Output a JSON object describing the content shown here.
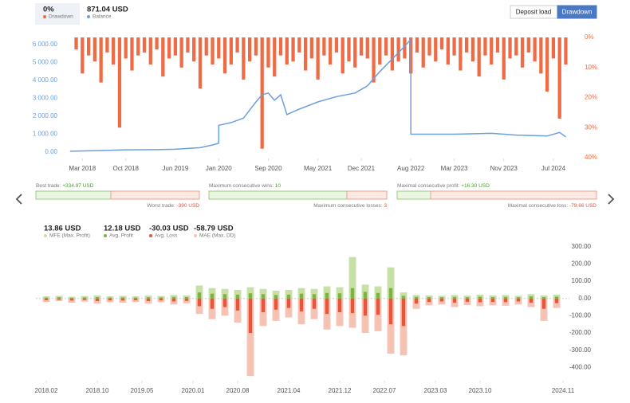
{
  "header": {
    "drawdown_value": "0%",
    "balance_value": "871.04 USD",
    "buttons": [
      "Deposit load",
      "Drawdown"
    ]
  },
  "stats": [
    {
      "top_label": "Best trade:",
      "top_value": "+334.97 USD",
      "bottom_label": "Worst trade:",
      "bottom_value": "-390 USD"
    },
    {
      "top_label": "Maximum consecutive wins:",
      "top_value": "10",
      "bottom_label": "Maximum consecutive losses:",
      "bottom_value": "3"
    },
    {
      "top_label": "Maximal consecutive profit:",
      "top_value": "+16.30 USD",
      "bottom_label": "Maximal consecutive loss:",
      "bottom_value": "-79.66 USD"
    }
  ],
  "chart_data": [
    {
      "type": "combo",
      "xlim": [
        "2017-12",
        "2024-11"
      ],
      "xticks": [
        {
          "value": "2018-03",
          "label": "Mar 2018"
        },
        {
          "value": "2018-10",
          "label": "Oct 2018"
        },
        {
          "value": "2019-06",
          "label": "Jun 2019"
        },
        {
          "value": "2020-01",
          "label": "Jan 2020"
        },
        {
          "value": "2020-09",
          "label": "Sep 2020"
        },
        {
          "value": "2021-05",
          "label": "May 2021"
        },
        {
          "value": "2021-12",
          "label": "Dec 2021"
        },
        {
          "value": "2022-08",
          "label": "Aug 2022"
        },
        {
          "value": "2023-03",
          "label": "Mar 2023"
        },
        {
          "value": "2023-11",
          "label": "Nov 2023"
        },
        {
          "value": "2024-07",
          "label": "Jul 2024"
        }
      ],
      "ylim": [
        -310,
        6400
      ],
      "yticks": [
        {
          "value": 0,
          "label": "0.00"
        },
        {
          "value": 1000,
          "label": "1 000.00"
        },
        {
          "value": 2000,
          "label": "2 000.00"
        },
        {
          "value": 3000,
          "label": "3 000.00"
        },
        {
          "value": 4000,
          "label": "4 000.00"
        },
        {
          "value": 5000,
          "label": "5 000.00"
        },
        {
          "value": 6000,
          "label": "6 000.00"
        }
      ],
      "y2lim": [
        0,
        40
      ],
      "y2_reversed": true,
      "y2ticks": [
        {
          "value": 0,
          "label": "0%"
        },
        {
          "value": 10,
          "label": "10%"
        },
        {
          "value": 20,
          "label": "20%"
        },
        {
          "value": 30,
          "label": "30%"
        },
        {
          "value": 40,
          "label": "40%"
        }
      ],
      "series": [
        {
          "name": "Drawdown",
          "color": "#ef6b45",
          "axis": "y2",
          "kind": "bar",
          "x": [
            "2018-02",
            "2018-03",
            "2018-04",
            "2018-05",
            "2018-06",
            "2018-07",
            "2018-08",
            "2018-09",
            "2018-10",
            "2018-11",
            "2018-12",
            "2019-01",
            "2019-02",
            "2019-03",
            "2019-04",
            "2019-05",
            "2019-06",
            "2019-07",
            "2019-08",
            "2019-09",
            "2019-10",
            "2019-11",
            "2019-12",
            "2020-01",
            "2020-02",
            "2020-03",
            "2020-04",
            "2020-05",
            "2020-06",
            "2020-07",
            "2020-08",
            "2020-09",
            "2020-10",
            "2020-11",
            "2020-12",
            "2021-01",
            "2021-02",
            "2021-03",
            "2021-04",
            "2021-05",
            "2021-06",
            "2021-07",
            "2021-08",
            "2021-09",
            "2021-10",
            "2021-11",
            "2021-12",
            "2022-01",
            "2022-02",
            "2022-03",
            "2022-04",
            "2022-05",
            "2022-06",
            "2022-07",
            "2022-08",
            "2022-09",
            "2022-10",
            "2022-11",
            "2022-12",
            "2023-01",
            "2023-02",
            "2023-03",
            "2023-04",
            "2023-05",
            "2023-06",
            "2023-07",
            "2023-08",
            "2023-09",
            "2023-10",
            "2023-11",
            "2023-12",
            "2024-01",
            "2024-02",
            "2024-03",
            "2024-04",
            "2024-05",
            "2024-06",
            "2024-07",
            "2024-08",
            "2024-09"
          ],
          "values": [
            4,
            12,
            6,
            8,
            15,
            5,
            9,
            30,
            7,
            11,
            6,
            5,
            9,
            4,
            13,
            7,
            6,
            10,
            5,
            8,
            17,
            6,
            9,
            7,
            12,
            9,
            5,
            14,
            8,
            6,
            37,
            10,
            13,
            6,
            9,
            8,
            5,
            11,
            7,
            14,
            6,
            9,
            5,
            12,
            8,
            10,
            6,
            7,
            15,
            9,
            6,
            11,
            8,
            7,
            12,
            5,
            10,
            6,
            8,
            4,
            9,
            6,
            11,
            5,
            8,
            13,
            6,
            9,
            5,
            14,
            7,
            6,
            10,
            5,
            8,
            12,
            18,
            7,
            27,
            9
          ]
        },
        {
          "name": "Balance",
          "color": "#6a9fe0",
          "axis": "y",
          "kind": "line",
          "x": [
            "2018-01",
            "2018-06",
            "2018-10",
            "2019-03",
            "2019-06",
            "2019-10",
            "2019-12",
            "2020-01",
            "2020-01",
            "2020-03",
            "2020-05",
            "2020-07",
            "2020-08",
            "2020-09",
            "2020-10",
            "2020-11",
            "2020-12",
            "2021-02",
            "2021-05",
            "2021-08",
            "2021-11",
            "2022-01",
            "2022-03",
            "2022-05",
            "2022-07",
            "2022-08",
            "2022-08",
            "2022-09",
            "2023-03",
            "2023-09",
            "2024-01",
            "2024-06",
            "2024-08",
            "2024-09"
          ],
          "values": [
            50,
            90,
            130,
            140,
            160,
            250,
            400,
            500,
            1500,
            1650,
            1900,
            2800,
            3200,
            3300,
            2900,
            3200,
            2100,
            2400,
            2800,
            3100,
            3300,
            3700,
            4500,
            5200,
            5900,
            6300,
            1000,
            1000,
            1000,
            1050,
            950,
            900,
            1100,
            850
          ]
        }
      ]
    },
    {
      "type": "bar",
      "xlim": [
        "2018-01",
        "2024-12"
      ],
      "xticks": [
        {
          "value": "2018-02",
          "label": "2018.02"
        },
        {
          "value": "2018-10",
          "label": "2018.10"
        },
        {
          "value": "2019-05",
          "label": "2019.05"
        },
        {
          "value": "2020-01",
          "label": "2020.01"
        },
        {
          "value": "2020-08",
          "label": "2020.08"
        },
        {
          "value": "2021-04",
          "label": "2021.04"
        },
        {
          "value": "2021-12",
          "label": "2021.12"
        },
        {
          "value": "2022-07",
          "label": "2022.07"
        },
        {
          "value": "2023-03",
          "label": "2023.03"
        },
        {
          "value": "2023-10",
          "label": "2023.10"
        },
        {
          "value": "2024-11",
          "label": "2024.11"
        }
      ],
      "ylim": [
        -440,
        345
      ],
      "yticks": [
        {
          "value": 300,
          "label": "300.00"
        },
        {
          "value": 200,
          "label": "200.00"
        },
        {
          "value": 100,
          "label": "100.00"
        },
        {
          "value": 0,
          "label": "0.00"
        },
        {
          "value": -100,
          "label": "-100.00"
        },
        {
          "value": -200,
          "label": "-200.00"
        },
        {
          "value": -300,
          "label": "-300.00"
        },
        {
          "value": -400,
          "label": "-400.00"
        }
      ],
      "x": [
        "2018-02",
        "2018-04",
        "2018-06",
        "2018-08",
        "2018-10",
        "2018-12",
        "2019-02",
        "2019-04",
        "2019-06",
        "2019-08",
        "2019-10",
        "2019-12",
        "2020-02",
        "2020-04",
        "2020-06",
        "2020-08",
        "2020-10",
        "2020-12",
        "2021-02",
        "2021-04",
        "2021-06",
        "2021-08",
        "2021-10",
        "2021-12",
        "2022-02",
        "2022-04",
        "2022-06",
        "2022-08",
        "2022-10",
        "2022-12",
        "2023-02",
        "2023-04",
        "2023-06",
        "2023-08",
        "2023-10",
        "2023-12",
        "2024-02",
        "2024-04",
        "2024-06",
        "2024-08",
        "2024-10"
      ],
      "series": [
        {
          "name": "MFE (Max. Profit)",
          "summary": "13.86 USD",
          "color": "#c5e1a5",
          "values": [
            12,
            15,
            10,
            14,
            18,
            12,
            15,
            12,
            16,
            14,
            20,
            18,
            75,
            60,
            55,
            50,
            65,
            55,
            45,
            50,
            60,
            55,
            70,
            65,
            240,
            80,
            70,
            180,
            35,
            20,
            18,
            15,
            20,
            16,
            22,
            18,
            20,
            15,
            25,
            18,
            22
          ]
        },
        {
          "name": "Avg. Profit",
          "summary": "12.18 USD",
          "color": "#7cb342",
          "values": [
            5,
            7,
            4,
            6,
            8,
            5,
            6,
            5,
            7,
            6,
            9,
            8,
            35,
            28,
            25,
            22,
            30,
            25,
            20,
            22,
            28,
            25,
            32,
            30,
            60,
            38,
            32,
            60,
            15,
            9,
            8,
            7,
            9,
            7,
            10,
            8,
            9,
            7,
            12,
            8,
            10
          ]
        },
        {
          "name": "Avg. Loss",
          "summary": "-30.03 USD",
          "color": "#e8553a",
          "values": [
            -10,
            -8,
            -12,
            -9,
            -15,
            -11,
            -12,
            -10,
            -15,
            -11,
            -17,
            -14,
            -45,
            -60,
            -50,
            -70,
            -200,
            -80,
            -65,
            -55,
            -75,
            -60,
            -90,
            -80,
            -85,
            -100,
            -95,
            -150,
            -160,
            -30,
            -20,
            -17,
            -25,
            -19,
            -22,
            -20,
            -21,
            -17,
            -25,
            -60,
            -27
          ]
        },
        {
          "name": "MAE (Max. DD)",
          "summary": "-58.79 USD",
          "color": "#f6c2b4",
          "values": [
            -20,
            -15,
            -25,
            -18,
            -30,
            -22,
            -25,
            -20,
            -30,
            -22,
            -35,
            -28,
            -90,
            -120,
            -100,
            -140,
            -450,
            -160,
            -130,
            -110,
            -150,
            -120,
            -180,
            -160,
            -170,
            -200,
            -190,
            -320,
            -330,
            -60,
            -40,
            -35,
            -50,
            -38,
            -45,
            -40,
            -42,
            -35,
            -50,
            -130,
            -55
          ]
        }
      ]
    }
  ]
}
